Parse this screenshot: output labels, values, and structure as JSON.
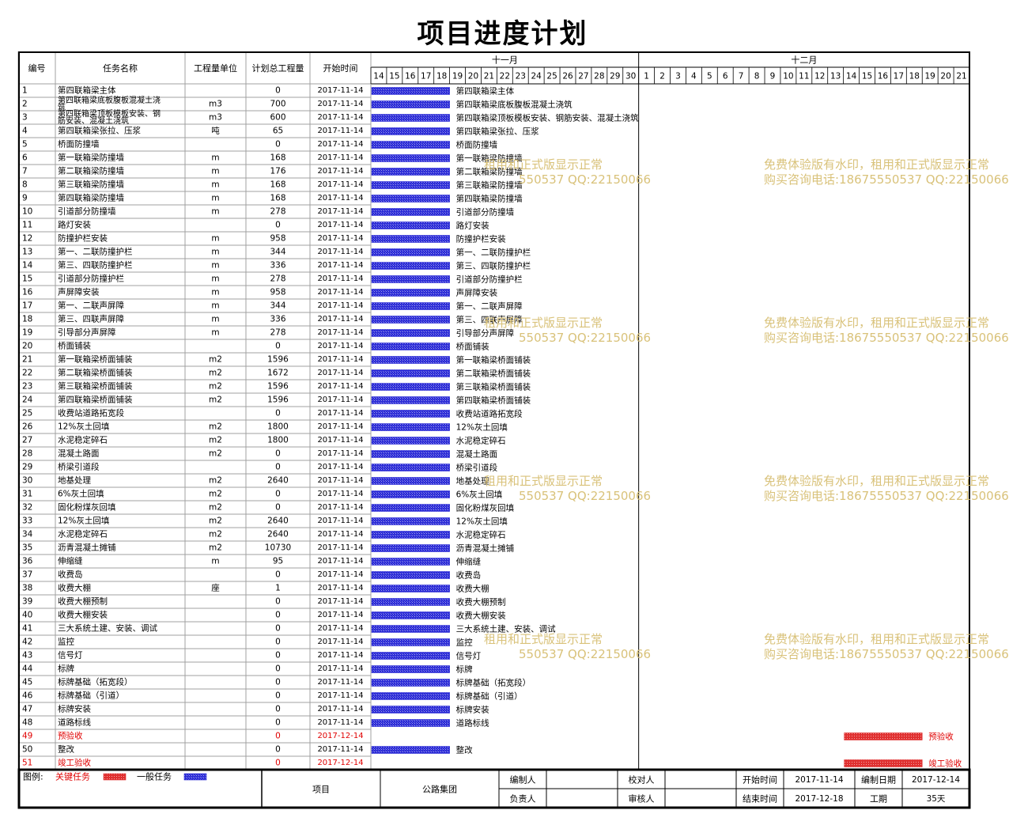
{
  "title": "项目进度计划",
  "headers": {
    "id": "编号",
    "name": "任务名称",
    "unit": "工程量单位",
    "qty": "计划总工程量",
    "start": "开始时间",
    "months": [
      "十一月",
      "十二月"
    ]
  },
  "timeline_days": [
    14,
    15,
    16,
    17,
    18,
    19,
    20,
    21,
    22,
    23,
    24,
    25,
    26,
    27,
    28,
    29,
    30,
    1,
    2,
    3,
    4,
    5,
    6,
    7,
    8,
    9,
    10,
    11,
    12,
    13,
    14,
    15,
    16,
    17,
    18,
    19,
    20,
    21
  ],
  "colors": {
    "normal_bar": "#2b2bd6",
    "critical_bar": "#e03030",
    "critical_text": "#e00000",
    "watermark": "#d9c27a",
    "grid": "#a0a0a0"
  },
  "chart_data": {
    "type": "gantt",
    "x_axis": {
      "start": "2017-11-14",
      "end": "2017-12-21"
    },
    "tasks": [
      {
        "id": "1",
        "name": "第四联箱梁主体",
        "unit": "",
        "qty": "0",
        "start": "2017-11-14",
        "duration_days": 5,
        "critical": false
      },
      {
        "id": "2",
        "name": "第四联箱梁底板腹板混凝土浇筑",
        "unit": "m3",
        "qty": "700",
        "start": "2017-11-14",
        "duration_days": 5,
        "critical": false
      },
      {
        "id": "3",
        "name": "第四联箱梁顶板模板安装、钢筋安装、混凝土浇筑",
        "unit": "m3",
        "qty": "600",
        "start": "2017-11-14",
        "duration_days": 5,
        "critical": false
      },
      {
        "id": "4",
        "name": "第四联箱梁张拉、压浆",
        "unit": "吨",
        "qty": "65",
        "start": "2017-11-14",
        "duration_days": 5,
        "critical": false
      },
      {
        "id": "5",
        "name": "桥面防撞墙",
        "unit": "",
        "qty": "0",
        "start": "2017-11-14",
        "duration_days": 5,
        "critical": false
      },
      {
        "id": "6",
        "name": "第一联箱梁防撞墙",
        "unit": "m",
        "qty": "168",
        "start": "2017-11-14",
        "duration_days": 5,
        "critical": false
      },
      {
        "id": "7",
        "name": "第二联箱梁防撞墙",
        "unit": "m",
        "qty": "176",
        "start": "2017-11-14",
        "duration_days": 5,
        "critical": false
      },
      {
        "id": "8",
        "name": "第三联箱梁防撞墙",
        "unit": "m",
        "qty": "168",
        "start": "2017-11-14",
        "duration_days": 5,
        "critical": false
      },
      {
        "id": "9",
        "name": "第四联箱梁防撞墙",
        "unit": "m",
        "qty": "168",
        "start": "2017-11-14",
        "duration_days": 5,
        "critical": false
      },
      {
        "id": "10",
        "name": "引道部分防撞墙",
        "unit": "m",
        "qty": "278",
        "start": "2017-11-14",
        "duration_days": 5,
        "critical": false
      },
      {
        "id": "11",
        "name": "路灯安装",
        "unit": "",
        "qty": "0",
        "start": "2017-11-14",
        "duration_days": 5,
        "critical": false
      },
      {
        "id": "12",
        "name": "防撞护栏安装",
        "unit": "m",
        "qty": "958",
        "start": "2017-11-14",
        "duration_days": 5,
        "critical": false
      },
      {
        "id": "13",
        "name": "第一、二联防撞护栏",
        "unit": "m",
        "qty": "344",
        "start": "2017-11-14",
        "duration_days": 5,
        "critical": false
      },
      {
        "id": "14",
        "name": "第三、四联防撞护栏",
        "unit": "m",
        "qty": "336",
        "start": "2017-11-14",
        "duration_days": 5,
        "critical": false
      },
      {
        "id": "15",
        "name": "引道部分防撞护栏",
        "unit": "m",
        "qty": "278",
        "start": "2017-11-14",
        "duration_days": 5,
        "critical": false
      },
      {
        "id": "16",
        "name": "声屏障安装",
        "unit": "m",
        "qty": "958",
        "start": "2017-11-14",
        "duration_days": 5,
        "critical": false
      },
      {
        "id": "17",
        "name": "第一、二联声屏障",
        "unit": "m",
        "qty": "344",
        "start": "2017-11-14",
        "duration_days": 5,
        "critical": false
      },
      {
        "id": "18",
        "name": "第三、四联声屏障",
        "unit": "m",
        "qty": "336",
        "start": "2017-11-14",
        "duration_days": 5,
        "critical": false
      },
      {
        "id": "19",
        "name": "引导部分声屏障",
        "unit": "m",
        "qty": "278",
        "start": "2017-11-14",
        "duration_days": 5,
        "critical": false
      },
      {
        "id": "20",
        "name": "桥面铺装",
        "unit": "",
        "qty": "0",
        "start": "2017-11-14",
        "duration_days": 5,
        "critical": false
      },
      {
        "id": "21",
        "name": "第一联箱梁桥面铺装",
        "unit": "m2",
        "qty": "1596",
        "start": "2017-11-14",
        "duration_days": 5,
        "critical": false
      },
      {
        "id": "22",
        "name": "第二联箱梁桥面铺装",
        "unit": "m2",
        "qty": "1672",
        "start": "2017-11-14",
        "duration_days": 5,
        "critical": false
      },
      {
        "id": "23",
        "name": "第三联箱梁桥面铺装",
        "unit": "m2",
        "qty": "1596",
        "start": "2017-11-14",
        "duration_days": 5,
        "critical": false
      },
      {
        "id": "24",
        "name": "第四联箱梁桥面铺装",
        "unit": "m2",
        "qty": "1596",
        "start": "2017-11-14",
        "duration_days": 5,
        "critical": false
      },
      {
        "id": "25",
        "name": "收费站道路拓宽段",
        "unit": "",
        "qty": "0",
        "start": "2017-11-14",
        "duration_days": 5,
        "critical": false
      },
      {
        "id": "26",
        "name": "12%灰土回填",
        "unit": "m2",
        "qty": "1800",
        "start": "2017-11-14",
        "duration_days": 5,
        "critical": false
      },
      {
        "id": "27",
        "name": "水泥稳定碎石",
        "unit": "m2",
        "qty": "1800",
        "start": "2017-11-14",
        "duration_days": 5,
        "critical": false
      },
      {
        "id": "28",
        "name": "混凝土路面",
        "unit": "m2",
        "qty": "0",
        "start": "2017-11-14",
        "duration_days": 5,
        "critical": false
      },
      {
        "id": "29",
        "name": "桥梁引道段",
        "unit": "",
        "qty": "0",
        "start": "2017-11-14",
        "duration_days": 5,
        "critical": false
      },
      {
        "id": "30",
        "name": "地基处理",
        "unit": "m2",
        "qty": "2640",
        "start": "2017-11-14",
        "duration_days": 5,
        "critical": false
      },
      {
        "id": "31",
        "name": "6%灰土回填",
        "unit": "m2",
        "qty": "0",
        "start": "2017-11-14",
        "duration_days": 5,
        "critical": false
      },
      {
        "id": "32",
        "name": "固化粉煤灰回填",
        "unit": "m2",
        "qty": "0",
        "start": "2017-11-14",
        "duration_days": 5,
        "critical": false
      },
      {
        "id": "33",
        "name": "12%灰土回填",
        "unit": "m2",
        "qty": "2640",
        "start": "2017-11-14",
        "duration_days": 5,
        "critical": false
      },
      {
        "id": "34",
        "name": "水泥稳定碎石",
        "unit": "m2",
        "qty": "2640",
        "start": "2017-11-14",
        "duration_days": 5,
        "critical": false
      },
      {
        "id": "35",
        "name": "沥青混凝土摊铺",
        "unit": "m2",
        "qty": "10730",
        "start": "2017-11-14",
        "duration_days": 5,
        "critical": false
      },
      {
        "id": "36",
        "name": "伸缩缝",
        "unit": "m",
        "qty": "95",
        "start": "2017-11-14",
        "duration_days": 5,
        "critical": false
      },
      {
        "id": "37",
        "name": "收费岛",
        "unit": "",
        "qty": "0",
        "start": "2017-11-14",
        "duration_days": 5,
        "critical": false
      },
      {
        "id": "38",
        "name": "收费大棚",
        "unit": "座",
        "qty": "1",
        "start": "2017-11-14",
        "duration_days": 5,
        "critical": false
      },
      {
        "id": "39",
        "name": "收费大棚预制",
        "unit": "",
        "qty": "0",
        "start": "2017-11-14",
        "duration_days": 5,
        "critical": false
      },
      {
        "id": "40",
        "name": "收费大棚安装",
        "unit": "",
        "qty": "0",
        "start": "2017-11-14",
        "duration_days": 5,
        "critical": false
      },
      {
        "id": "41",
        "name": "三大系统土建、安装、调试",
        "unit": "",
        "qty": "0",
        "start": "2017-11-14",
        "duration_days": 5,
        "critical": false
      },
      {
        "id": "42",
        "name": "监控",
        "unit": "",
        "qty": "0",
        "start": "2017-11-14",
        "duration_days": 5,
        "critical": false
      },
      {
        "id": "43",
        "name": "信号灯",
        "unit": "",
        "qty": "0",
        "start": "2017-11-14",
        "duration_days": 5,
        "critical": false
      },
      {
        "id": "44",
        "name": "标牌",
        "unit": "",
        "qty": "0",
        "start": "2017-11-14",
        "duration_days": 5,
        "critical": false
      },
      {
        "id": "45",
        "name": "标牌基础（拓宽段）",
        "unit": "",
        "qty": "0",
        "start": "2017-11-14",
        "duration_days": 5,
        "critical": false
      },
      {
        "id": "46",
        "name": "标牌基础（引道）",
        "unit": "",
        "qty": "0",
        "start": "2017-11-14",
        "duration_days": 5,
        "critical": false
      },
      {
        "id": "47",
        "name": "标牌安装",
        "unit": "",
        "qty": "0",
        "start": "2017-11-14",
        "duration_days": 5,
        "critical": false
      },
      {
        "id": "48",
        "name": "道路标线",
        "unit": "",
        "qty": "0",
        "start": "2017-11-14",
        "duration_days": 5,
        "critical": false
      },
      {
        "id": "49",
        "name": "预验收",
        "unit": "",
        "qty": "0",
        "start": "2017-12-14",
        "duration_days": 5,
        "critical": true
      },
      {
        "id": "50",
        "name": "整改",
        "unit": "",
        "qty": "0",
        "start": "2017-11-14",
        "duration_days": 5,
        "critical": false
      },
      {
        "id": "51",
        "name": "竣工验收",
        "unit": "",
        "qty": "0",
        "start": "2017-12-14",
        "duration_days": 5,
        "critical": true
      }
    ]
  },
  "legend": {
    "label": "图例:",
    "critical": "关键任务",
    "normal": "一般任务"
  },
  "footer": {
    "project_label": "项目",
    "company": "公路集团",
    "compiler_label": "编制人",
    "compiler_value": "",
    "checker_label": "校对人",
    "checker_value": "",
    "start_label": "开始时间",
    "start_value": "2017-11-14",
    "date_label": "编制日期",
    "date_value": "2017-12-14",
    "owner_label": "负责人",
    "owner_value": "",
    "reviewer_label": "审核人",
    "reviewer_value": "",
    "end_label": "结束时间",
    "end_value": "2017-12-18",
    "period_label": "工期",
    "period_value": "35天"
  },
  "watermark": {
    "line1_full": "免费体验版有水印，租用和正式版显示正常",
    "line2_full": "购买咨询电话:18675550537 QQ:22150066",
    "line1_partial": "租用和正式版显示正常",
    "line2_partial": "550537 QQ:22150066"
  }
}
